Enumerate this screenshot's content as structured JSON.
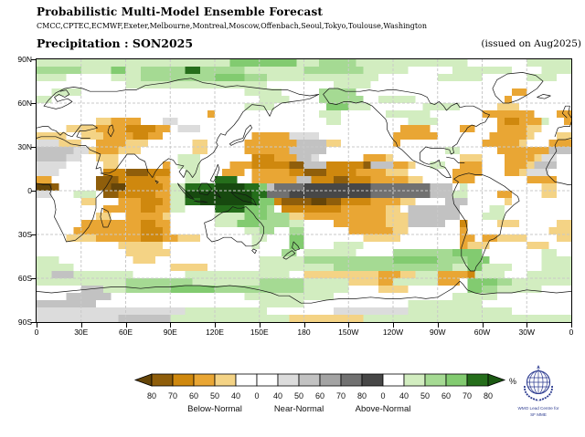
{
  "header": {
    "title": "Probabilistic Multi-Model Ensemble Forecast",
    "models": "CMCC,CPTEC,ECMWF,Exeter,Melbourne,Montreal,Moscow,Offenbach,Seoul,Tokyo,Toulouse,Washington",
    "variable_line": "Precipitation : SON2025",
    "issued": "(issued on Aug2025)"
  },
  "map": {
    "lat_labels": [
      "90N",
      "60N",
      "30N",
      "0",
      "30S",
      "60S",
      "90S"
    ],
    "lon_labels": [
      "0",
      "30E",
      "60E",
      "90E",
      "120E",
      "150E",
      "180",
      "150W",
      "120W",
      "90W",
      "60W",
      "30W",
      "0"
    ],
    "palette": {
      "a": "#f4d385",
      "b": "#e9a634",
      "c": "#cf880e",
      "d": "#8f5e0b",
      "e": "#654509",
      "f": "#dcdcdc",
      "g": "#c2c2c2",
      "h": "#a3a3a3",
      "i": "#717171",
      "j": "#474747",
      "k": "#d2edc0",
      "l": "#a5da93",
      "m": "#82cb70",
      "n": "#256e1b",
      "o": "#17490f"
    },
    "grid": {
      "cols": 72,
      "rows": 36,
      "cells": [
        "kkkkkkkkkkkkkkkkkkkkkkkkkkmmmmmmmmmkkklllllkkkkkkkkkkkkkkk........kkkkkk",
        "llllllkkkkmmkkllllllnnllllllkkkkkkkkllllllllkkkkkk......kkkkkkkk....kkkk",
        "kkkk......kkkkllllllllllmmmmlllkkkkkkkkkkkkkkk........kkkkkk......kkkk..",
        "............kkkkkkkkkkkkkkkkkkk.........kkkkk...........................",
        "..kkkk......................kkkkk.....lllll.....................bb......",
        "kk............................kkkk....llllll..kkkkk............b........",
        "............................kkkk.......mmmkkk.......kkkkk.....aaa.......",
        ".......................b..............kkk......kkkkkk.......bbbbbbb...bb",
        "........aabbbb...ff....................kk.........kkkk........bccbbbk..b",
        "....aaaabbbbccccbb.fff...........................bbbb....bb...bbbbaa....",
        "aaaa..aaabbbbccbb............bbbbbffff..........bbbbbb.......bbbbba...aa",
        "fffaaa..bbbbaaa......aa.....bbbbbbbggggaa.......b...........bbbbba...bbb",
        "gggggffabbbaaa.......aa.....bbbbbbggggg................kk.....bbbbbbbggg",
        "ggggff..aaa........kkk.......cccbbbggf......bbba.........aaa...bbbbaff..",
        "ffff.....aa......b.kkk....bbbcccccddgggcccccdgggbba..kk..bbb...bbbaggg..",
        "fff......cccdddccc..kk...bbb.bbbbbccdddccccbbbbaaa......bbbb...bbafff...",
        "bb......dddcccccbb..kk..nnn..bbbbbbggcccddcccbbbbbaa....bbb.......bbbb..",
        "eed.....ddeecccccbkknnnnoooonnmgiiiijjjjjjjjjiiiiiiiiggg.k..........aa..",
        "ff...kkk.ddcccccbbkkooooooooonniiijjjjjjjjjjjiiiiiiiigggkk....bb....aa..",
        "......aa...bbbcccbkknnooooooonmmcddddeeddccccbbbbaa....ggg.....a........",
        ".........bbbbbccbbkk....nnnnmmml.ccccccccbbbbbbaa.ggggggg....kk.........",
        "........aa..bbbbba......kkkkmmmlllaabbbbbbbbbbbaaaggggggg...kkk.........",
        "......bbbbbbbbccbb......kkkmmmllllkk....bbbbbbbaaaggggg..c....aaa.....aa",
        ".....bbbbbbbbbcccb..........kkll..ll......bbbbbbaa.......b...........aaa",
        "....aaaabbbbbbcccbbaaa.......kk...mm........aaaaa........bb.bbaaaa....aa",
        "...........aaaaaa............k....mm....kkkk.............baaa.....aaa...",
        "............aaaaaa...............ll.kkkkkkk.....llllllllmmmm........kk..",
        "kkk..........aaa..............kkkkkkllllllllllllmmmmmmllllmmm.......kkkk",
        "kkkkk.............aaaaa.......kkkkkkkkkkllllllllllllllllkkmmkkkk....kkkk",
        "kkgggkkkkkkkk.......kkkkkkkkkkkkkk..aaaaaaaaaabbbaakkkbbbbckkkk...kkkkkk",
        "kkkkkkkkkkkklllllllllkkkkkkkkkllllllkkkkkkaaaabbkkkkkkbbb.mmmmllkkkkkkkk",
        "......gggkkkllllllmmmmmmllllllllllllkkkkkk....aaaa........mmllkkkkkk....",
        "....gggggg..................kkkkkkkkkkkk................kkkkkk..........",
        "gggggggg......................kkkkkk..............kkkkkkkkkk............",
        "ffffffffffffffffffffkkkkkkkkkkk.........ffffffffffkkkkkkkkkkkkkk........",
        "fffffffffffgggggggkkkkkkkkkkkkkkkkaaaaaaaaaakkkkkkkkkkkkkkkkkkkkkkkkkkkk"
      ]
    }
  },
  "legend": {
    "percent_label": "%",
    "tick_labels": [
      "80",
      "70",
      "60",
      "50",
      "40",
      "0",
      "40",
      "50",
      "60",
      "70",
      "80",
      "0",
      "40",
      "50",
      "60",
      "70",
      "80"
    ],
    "segments": [
      "#8f5e0b",
      "#cf880e",
      "#e9a634",
      "#f4d385",
      "#ffffff",
      "#ffffff",
      "#dcdcdc",
      "#c2c2c2",
      "#a3a3a3",
      "#717171",
      "#474747",
      "#ffffff",
      "#d2edc0",
      "#a5da93",
      "#82cb70",
      "#256e1b"
    ],
    "left_arrow_color": "#654509",
    "right_arrow_color": "#1b5912",
    "categories": [
      {
        "label": "Below-Normal"
      },
      {
        "label": "Near-Normal"
      },
      {
        "label": "Above-Normal"
      }
    ]
  },
  "logo": {
    "line1": "WMO Lead Centre for",
    "line2": "SF MME",
    "color": "#2b3a8f"
  }
}
